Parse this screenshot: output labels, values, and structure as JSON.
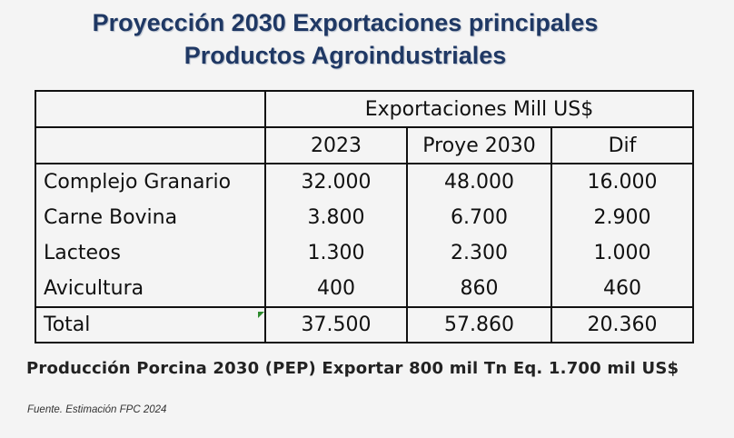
{
  "title": {
    "line1": "Proyección 2030 Exportaciones principales",
    "line2": "Productos  Agroindustriales"
  },
  "table": {
    "group_header": "Exportaciones Mill US$",
    "columns": [
      "2023",
      "Proye 2030",
      "Dif"
    ],
    "rows": [
      {
        "label": "Complejo Granario",
        "v2023": "32.000",
        "v2030": "48.000",
        "dif": "16.000"
      },
      {
        "label": "Carne Bovina",
        "v2023": "3.800",
        "v2030": "6.700",
        "dif": "2.900"
      },
      {
        "label": "Lacteos",
        "v2023": "1.300",
        "v2030": "2.300",
        "dif": "1.000"
      },
      {
        "label": "Avicultura",
        "v2023": "400",
        "v2030": "860",
        "dif": "460"
      }
    ],
    "total": {
      "label": "Total",
      "v2023": "37.500",
      "v2030": "57.860",
      "dif": "20.360"
    }
  },
  "note": "Producción Porcina 2030 (PEP) Exportar 800 mil Tn  Eq. 1.700 mil US$",
  "source": "Fuente.  Estimación FPC 2024",
  "colors": {
    "title": "#1f3864",
    "background": "#f4f4f4"
  }
}
